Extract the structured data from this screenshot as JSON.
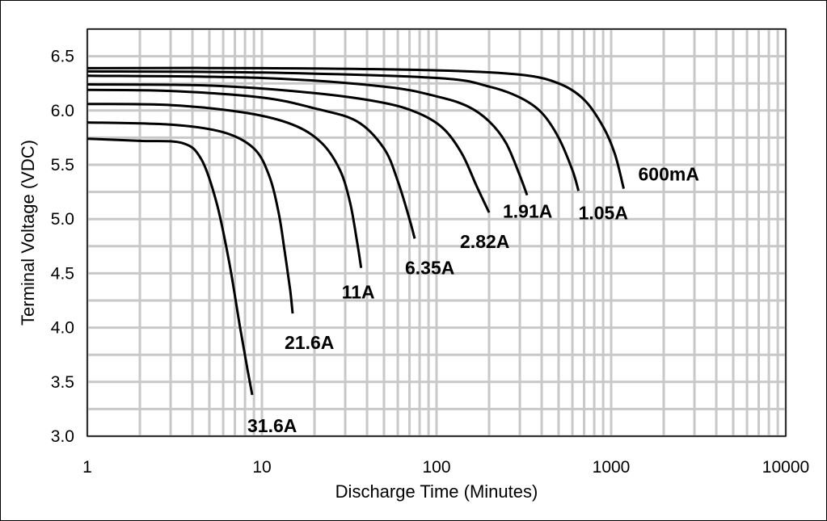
{
  "chart_data": {
    "type": "line",
    "xlabel": "Discharge Time (Minutes)",
    "ylabel": "Terminal Voltage (VDC)",
    "x_scale": "log",
    "xlim": [
      1,
      10000
    ],
    "ylim": [
      3.0,
      6.75
    ],
    "x_ticks": [
      1,
      10,
      100,
      1000,
      10000
    ],
    "x_tick_labels": [
      "1",
      "10",
      "100",
      "1000",
      "10000"
    ],
    "y_ticks": [
      3.0,
      3.5,
      4.0,
      4.5,
      5.0,
      5.5,
      6.0,
      6.5
    ],
    "y_tick_labels": [
      "3.0",
      "3.5",
      "4.0",
      "4.5",
      "5.0",
      "5.5",
      "6.0",
      "6.5"
    ],
    "grid": true,
    "legend": "none",
    "series": [
      {
        "name": "600mA",
        "x": [
          1,
          10,
          100,
          300,
          500,
          700,
          900,
          1050,
          1180
        ],
        "y": [
          6.39,
          6.39,
          6.37,
          6.33,
          6.25,
          6.1,
          5.85,
          5.6,
          5.28
        ]
      },
      {
        "name": "1.05A",
        "x": [
          1,
          10,
          100,
          200,
          300,
          400,
          500,
          600,
          650
        ],
        "y": [
          6.36,
          6.35,
          6.3,
          6.22,
          6.12,
          5.98,
          5.75,
          5.45,
          5.26
        ]
      },
      {
        "name": "1.91A",
        "x": [
          1,
          10,
          50,
          100,
          150,
          200,
          250,
          300,
          330
        ],
        "y": [
          6.32,
          6.3,
          6.22,
          6.13,
          6.04,
          5.9,
          5.7,
          5.4,
          5.22
        ]
      },
      {
        "name": "2.82A",
        "x": [
          1,
          5,
          20,
          50,
          80,
          110,
          140,
          170,
          200
        ],
        "y": [
          6.24,
          6.23,
          6.16,
          6.07,
          5.97,
          5.83,
          5.6,
          5.3,
          5.06
        ]
      },
      {
        "name": "6.35A",
        "x": [
          1,
          3,
          10,
          20,
          35,
          50,
          60,
          70,
          75
        ],
        "y": [
          6.19,
          6.18,
          6.12,
          6.02,
          5.9,
          5.65,
          5.35,
          5.0,
          4.82
        ]
      },
      {
        "name": "11A",
        "x": [
          1,
          3,
          8,
          15,
          22,
          28,
          32,
          35,
          37
        ],
        "y": [
          6.06,
          6.05,
          5.98,
          5.87,
          5.7,
          5.45,
          5.15,
          4.8,
          4.55
        ]
      },
      {
        "name": "21.6A",
        "x": [
          1,
          3,
          6,
          9,
          11,
          12.5,
          13.5,
          14.5,
          15
        ],
        "y": [
          5.89,
          5.87,
          5.8,
          5.65,
          5.4,
          5.05,
          4.7,
          4.35,
          4.13
        ]
      },
      {
        "name": "31.6A",
        "x": [
          1,
          2,
          3.5,
          4.5,
          5.5,
          6.5,
          7.5,
          8.3,
          8.8
        ],
        "y": [
          5.74,
          5.72,
          5.7,
          5.55,
          5.15,
          4.6,
          4.0,
          3.6,
          3.38
        ]
      }
    ]
  }
}
